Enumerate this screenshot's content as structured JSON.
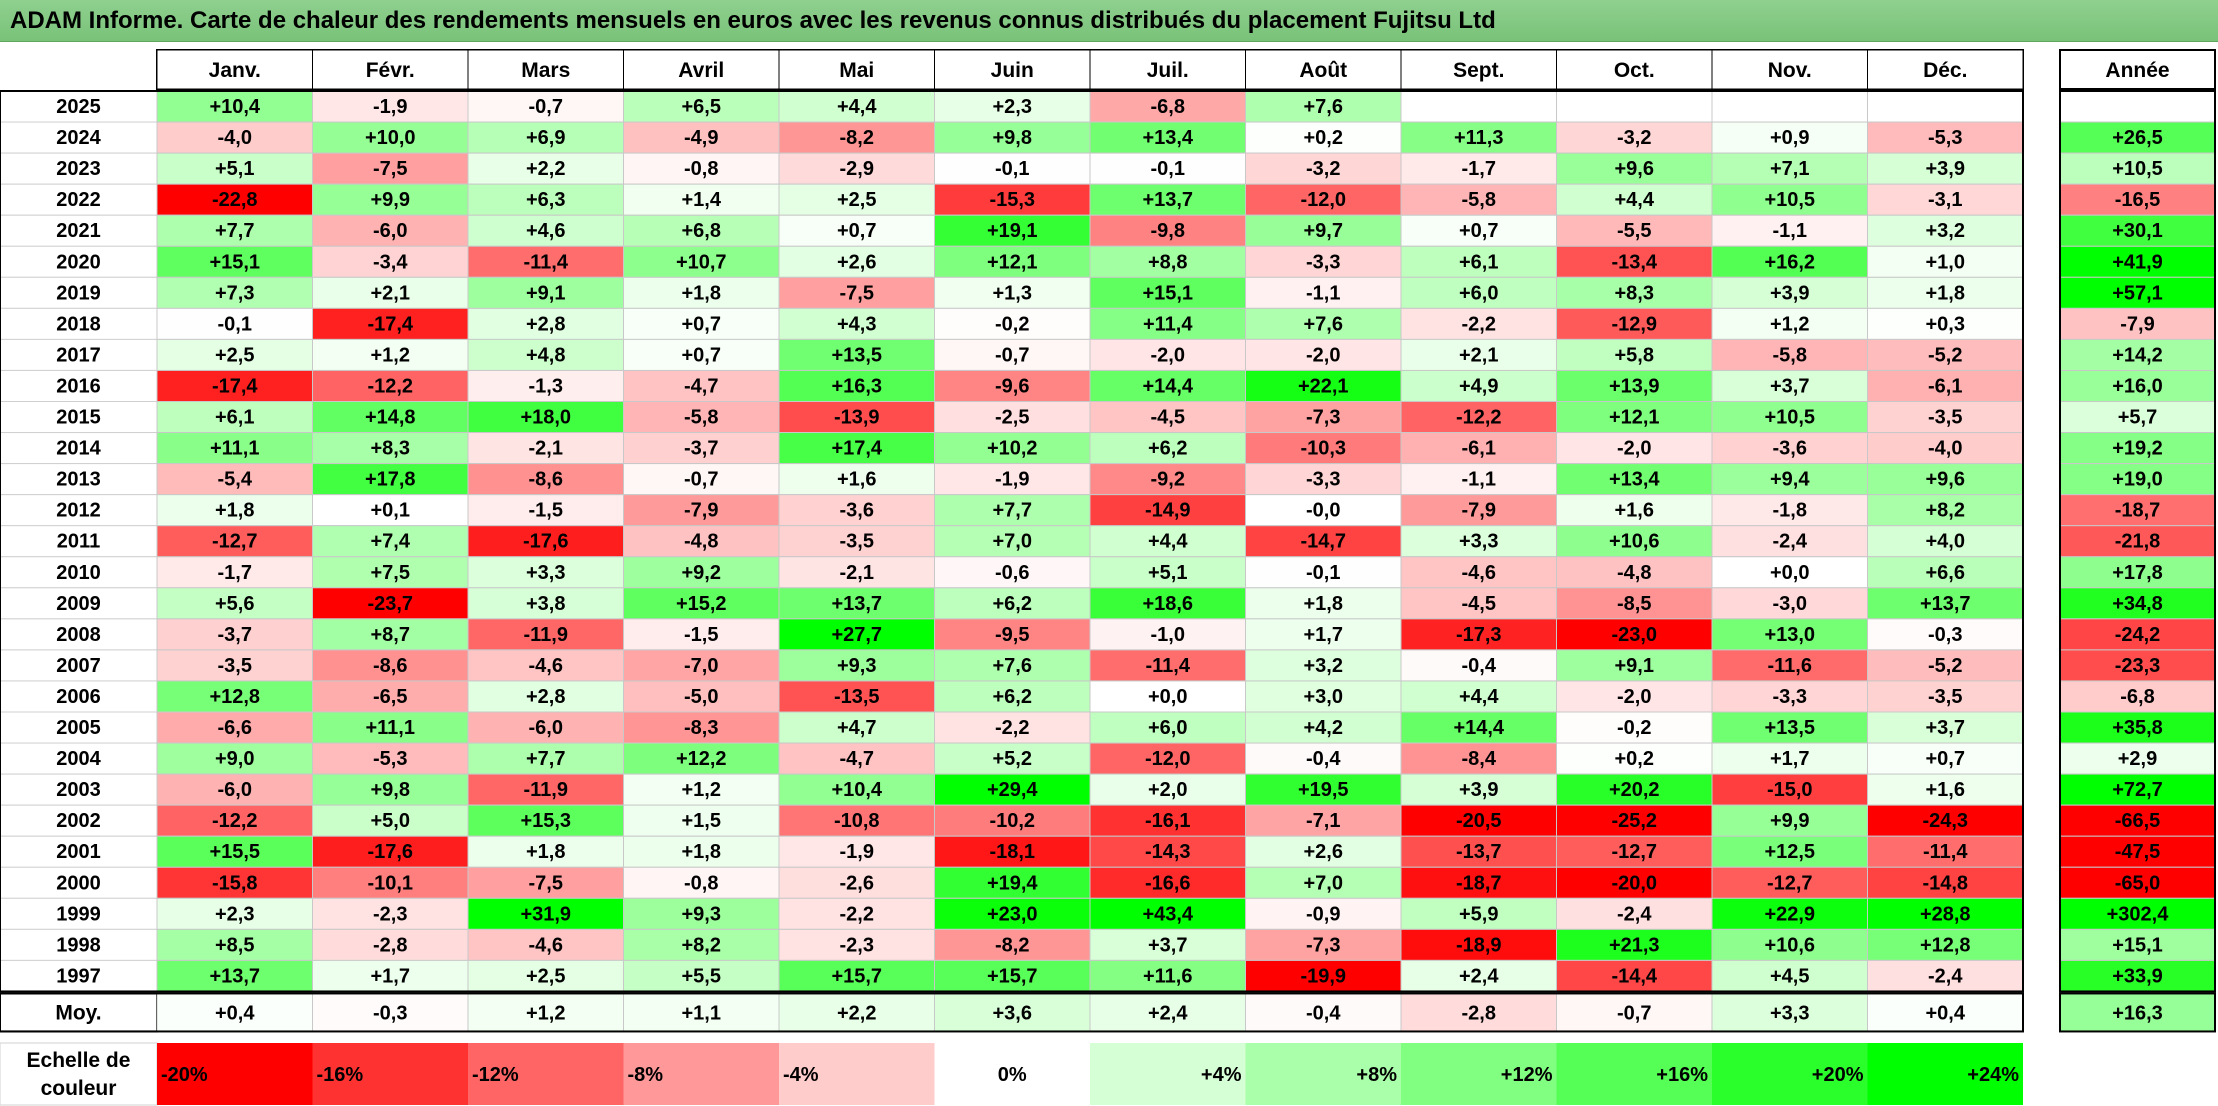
{
  "title": "ADAM Informe. Carte de chaleur des rendements mensuels en euros avec les revenus connus distribués du placement Fujitsu Ltd",
  "chart_data": {
    "type": "heatmap",
    "months": [
      "Janv.",
      "Févr.",
      "Mars",
      "Avril",
      "Mai",
      "Juin",
      "Juil.",
      "Août",
      "Sept.",
      "Oct.",
      "Nov.",
      "Déc."
    ],
    "year_header": "Année",
    "rows": [
      {
        "label": "2025",
        "values": [
          "+10,4",
          "-1,9",
          "-0,7",
          "+6,5",
          "+4,4",
          "+2,3",
          "-6,8",
          "+7,6",
          "",
          "",
          "",
          ""
        ],
        "year": ""
      },
      {
        "label": "2024",
        "values": [
          "-4,0",
          "+10,0",
          "+6,9",
          "-4,9",
          "-8,2",
          "+9,8",
          "+13,4",
          "+0,2",
          "+11,3",
          "-3,2",
          "+0,9",
          "-5,3"
        ],
        "year": "+26,5"
      },
      {
        "label": "2023",
        "values": [
          "+5,1",
          "-7,5",
          "+2,2",
          "-0,8",
          "-2,9",
          "-0,1",
          "-0,1",
          "-3,2",
          "-1,7",
          "+9,6",
          "+7,1",
          "+3,9"
        ],
        "year": "+10,5"
      },
      {
        "label": "2022",
        "values": [
          "-22,8",
          "+9,9",
          "+6,3",
          "+1,4",
          "+2,5",
          "-15,3",
          "+13,7",
          "-12,0",
          "-5,8",
          "+4,4",
          "+10,5",
          "-3,1"
        ],
        "year": "-16,5"
      },
      {
        "label": "2021",
        "values": [
          "+7,7",
          "-6,0",
          "+4,6",
          "+6,8",
          "+0,7",
          "+19,1",
          "-9,8",
          "+9,7",
          "+0,7",
          "-5,5",
          "-1,1",
          "+3,2"
        ],
        "year": "+30,1"
      },
      {
        "label": "2020",
        "values": [
          "+15,1",
          "-3,4",
          "-11,4",
          "+10,7",
          "+2,6",
          "+12,1",
          "+8,8",
          "-3,3",
          "+6,1",
          "-13,4",
          "+16,2",
          "+1,0"
        ],
        "year": "+41,9"
      },
      {
        "label": "2019",
        "values": [
          "+7,3",
          "+2,1",
          "+9,1",
          "+1,8",
          "-7,5",
          "+1,3",
          "+15,1",
          "-1,1",
          "+6,0",
          "+8,3",
          "+3,9",
          "+1,8"
        ],
        "year": "+57,1"
      },
      {
        "label": "2018",
        "values": [
          "-0,1",
          "-17,4",
          "+2,8",
          "+0,7",
          "+4,3",
          "-0,2",
          "+11,4",
          "+7,6",
          "-2,2",
          "-12,9",
          "+1,2",
          "+0,3"
        ],
        "year": "-7,9"
      },
      {
        "label": "2017",
        "values": [
          "+2,5",
          "+1,2",
          "+4,8",
          "+0,7",
          "+13,5",
          "-0,7",
          "-2,0",
          "-2,0",
          "+2,1",
          "+5,8",
          "-5,8",
          "-5,2"
        ],
        "year": "+14,2"
      },
      {
        "label": "2016",
        "values": [
          "-17,4",
          "-12,2",
          "-1,3",
          "-4,7",
          "+16,3",
          "-9,6",
          "+14,4",
          "+22,1",
          "+4,9",
          "+13,9",
          "+3,7",
          "-6,1"
        ],
        "year": "+16,0"
      },
      {
        "label": "2015",
        "values": [
          "+6,1",
          "+14,8",
          "+18,0",
          "-5,8",
          "-13,9",
          "-2,5",
          "-4,5",
          "-7,3",
          "-12,2",
          "+12,1",
          "+10,5",
          "-3,5"
        ],
        "year": "+5,7"
      },
      {
        "label": "2014",
        "values": [
          "+11,1",
          "+8,3",
          "-2,1",
          "-3,7",
          "+17,4",
          "+10,2",
          "+6,2",
          "-10,3",
          "-6,1",
          "-2,0",
          "-3,6",
          "-4,0"
        ],
        "year": "+19,2"
      },
      {
        "label": "2013",
        "values": [
          "-5,4",
          "+17,8",
          "-8,6",
          "-0,7",
          "+1,6",
          "-1,9",
          "-9,2",
          "-3,3",
          "-1,1",
          "+13,4",
          "+9,4",
          "+9,6"
        ],
        "year": "+19,0"
      },
      {
        "label": "2012",
        "values": [
          "+1,8",
          "+0,1",
          "-1,5",
          "-7,9",
          "-3,6",
          "+7,7",
          "-14,9",
          "-0,0",
          "-7,9",
          "+1,6",
          "-1,8",
          "+8,2"
        ],
        "year": "-18,7"
      },
      {
        "label": "2011",
        "values": [
          "-12,7",
          "+7,4",
          "-17,6",
          "-4,8",
          "-3,5",
          "+7,0",
          "+4,4",
          "-14,7",
          "+3,3",
          "+10,6",
          "-2,4",
          "+4,0"
        ],
        "year": "-21,8"
      },
      {
        "label": "2010",
        "values": [
          "-1,7",
          "+7,5",
          "+3,3",
          "+9,2",
          "-2,1",
          "-0,6",
          "+5,1",
          "-0,1",
          "-4,6",
          "-4,8",
          "+0,0",
          "+6,6"
        ],
        "year": "+17,8"
      },
      {
        "label": "2009",
        "values": [
          "+5,6",
          "-23,7",
          "+3,8",
          "+15,2",
          "+13,7",
          "+6,2",
          "+18,6",
          "+1,8",
          "-4,5",
          "-8,5",
          "-3,0",
          "+13,7"
        ],
        "year": "+34,8"
      },
      {
        "label": "2008",
        "values": [
          "-3,7",
          "+8,7",
          "-11,9",
          "-1,5",
          "+27,7",
          "-9,5",
          "-1,0",
          "+1,7",
          "-17,3",
          "-23,0",
          "+13,0",
          "-0,3"
        ],
        "year": "-24,2"
      },
      {
        "label": "2007",
        "values": [
          "-3,5",
          "-8,6",
          "-4,6",
          "-7,0",
          "+9,3",
          "+7,6",
          "-11,4",
          "+3,2",
          "-0,4",
          "+9,1",
          "-11,6",
          "-5,2"
        ],
        "year": "-23,3"
      },
      {
        "label": "2006",
        "values": [
          "+12,8",
          "-6,5",
          "+2,8",
          "-5,0",
          "-13,5",
          "+6,2",
          "+0,0",
          "+3,0",
          "+4,4",
          "-2,0",
          "-3,3",
          "-3,5"
        ],
        "year": "-6,8"
      },
      {
        "label": "2005",
        "values": [
          "-6,6",
          "+11,1",
          "-6,0",
          "-8,3",
          "+4,7",
          "-2,2",
          "+6,0",
          "+4,2",
          "+14,4",
          "-0,2",
          "+13,5",
          "+3,7"
        ],
        "year": "+35,8"
      },
      {
        "label": "2004",
        "values": [
          "+9,0",
          "-5,3",
          "+7,7",
          "+12,2",
          "-4,7",
          "+5,2",
          "-12,0",
          "-0,4",
          "-8,4",
          "+0,2",
          "+1,7",
          "+0,7"
        ],
        "year": "+2,9"
      },
      {
        "label": "2003",
        "values": [
          "-6,0",
          "+9,8",
          "-11,9",
          "+1,2",
          "+10,4",
          "+29,4",
          "+2,0",
          "+19,5",
          "+3,9",
          "+20,2",
          "-15,0",
          "+1,6"
        ],
        "year": "+72,7"
      },
      {
        "label": "2002",
        "values": [
          "-12,2",
          "+5,0",
          "+15,3",
          "+1,5",
          "-10,8",
          "-10,2",
          "-16,1",
          "-7,1",
          "-20,5",
          "-25,2",
          "+9,9",
          "-24,3"
        ],
        "year": "-66,5"
      },
      {
        "label": "2001",
        "values": [
          "+15,5",
          "-17,6",
          "+1,8",
          "+1,8",
          "-1,9",
          "-18,1",
          "-14,3",
          "+2,6",
          "-13,7",
          "-12,7",
          "+12,5",
          "-11,4"
        ],
        "year": "-47,5"
      },
      {
        "label": "2000",
        "values": [
          "-15,8",
          "-10,1",
          "-7,5",
          "-0,8",
          "-2,6",
          "+19,4",
          "-16,6",
          "+7,0",
          "-18,7",
          "-20,0",
          "-12,7",
          "-14,8"
        ],
        "year": "-65,0"
      },
      {
        "label": "1999",
        "values": [
          "+2,3",
          "-2,3",
          "+31,9",
          "+9,3",
          "-2,2",
          "+23,0",
          "+43,4",
          "-0,9",
          "+5,9",
          "-2,4",
          "+22,9",
          "+28,8"
        ],
        "year": "+302,4"
      },
      {
        "label": "1998",
        "values": [
          "+8,5",
          "-2,8",
          "-4,6",
          "+8,2",
          "-2,3",
          "-8,2",
          "+3,7",
          "-7,3",
          "-18,9",
          "+21,3",
          "+10,6",
          "+12,8"
        ],
        "year": "+15,1"
      },
      {
        "label": "1997",
        "values": [
          "+13,7",
          "+1,7",
          "+2,5",
          "+5,5",
          "+15,7",
          "+15,7",
          "+11,6",
          "-19,9",
          "+2,4",
          "-14,4",
          "+4,5",
          "-2,4"
        ],
        "year": "+33,9"
      }
    ],
    "average": {
      "label": "Moy.",
      "values": [
        "+0,4",
        "-0,3",
        "+1,2",
        "+1,1",
        "+2,2",
        "+3,6",
        "+2,4",
        "-0,4",
        "-2,8",
        "-0,7",
        "+3,3",
        "+0,4"
      ],
      "year": "+16,3"
    },
    "scale": {
      "label_line1": "Echelle de",
      "label_line2": "couleur",
      "steps": [
        "-20%",
        "-16%",
        "-12%",
        "-8%",
        "-4%",
        "0%",
        "+4%",
        "+8%",
        "+12%",
        "+16%",
        "+20%",
        "+24%"
      ]
    },
    "colors": {
      "negative_max": "#ff0000",
      "neutral": "#ffffff",
      "positive_max": "#00ff00"
    }
  }
}
